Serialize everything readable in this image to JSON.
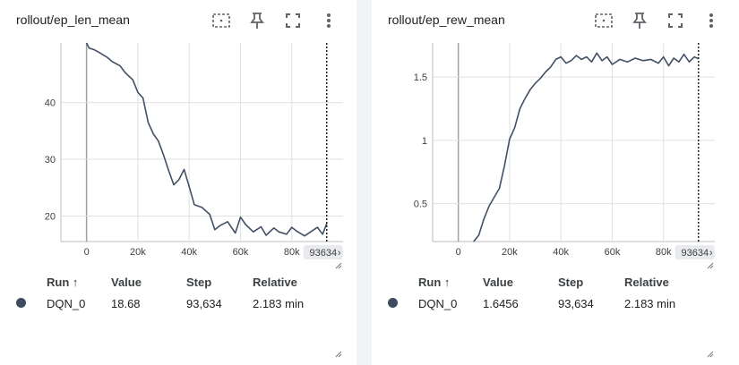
{
  "colors": {
    "series": "#425066",
    "grid": "#e0e0e0",
    "axis": "#888888"
  },
  "icons": [
    "select-region-icon",
    "pin-icon",
    "fullscreen-icon",
    "more-vert-icon"
  ],
  "cards": [
    {
      "title": "rollout/ep_len_mean",
      "step_badge": "93634",
      "table": {
        "headers": {
          "run": "Run ↑",
          "value": "Value",
          "step": "Step",
          "relative": "Relative"
        },
        "row": {
          "run": "DQN_0",
          "value": "18.68",
          "step": "93,634",
          "relative": "2.183 min"
        }
      }
    },
    {
      "title": "rollout/ep_rew_mean",
      "step_badge": "93634",
      "table": {
        "headers": {
          "run": "Run ↑",
          "value": "Value",
          "step": "Step",
          "relative": "Relative"
        },
        "row": {
          "run": "DQN_0",
          "value": "1.6456",
          "step": "93,634",
          "relative": "2.183 min"
        }
      }
    }
  ],
  "chart_data": [
    {
      "type": "line",
      "title": "rollout/ep_len_mean",
      "series": [
        {
          "name": "DQN_0",
          "x": [
            0,
            1000,
            3000,
            5000,
            8000,
            10000,
            13000,
            15000,
            18000,
            20000,
            22000,
            24000,
            26000,
            28000,
            30000,
            32000,
            34000,
            36000,
            38000,
            40000,
            42000,
            45000,
            48000,
            50000,
            52000,
            55000,
            58000,
            60000,
            62000,
            65000,
            68000,
            70000,
            73000,
            75000,
            78000,
            80000,
            82000,
            85000,
            88000,
            90000,
            92000,
            93634
          ],
          "y": [
            50.5,
            49.6,
            49.3,
            48.8,
            48.0,
            47.2,
            46.5,
            45.3,
            44.0,
            41.8,
            40.8,
            36.5,
            34.5,
            33.2,
            30.8,
            28.0,
            25.5,
            26.4,
            28.2,
            25.2,
            22.0,
            21.5,
            20.3,
            17.6,
            18.3,
            19.0,
            17.0,
            19.8,
            18.5,
            17.2,
            18.1,
            16.6,
            17.9,
            17.2,
            16.8,
            18.0,
            17.3,
            16.5,
            17.4,
            18.0,
            16.8,
            18.68
          ]
        }
      ],
      "xlim": [
        -10000,
        100000
      ],
      "ylim": [
        15.5,
        50.5
      ],
      "x_ticks": [
        0,
        20000,
        40000,
        60000,
        80000
      ],
      "x_tick_labels": [
        "0",
        "20k",
        "40k",
        "60k",
        "80k"
      ],
      "y_ticks": [
        20,
        30,
        40
      ],
      "y_tick_labels": [
        "20",
        "30",
        "40"
      ],
      "step_marker": 93634,
      "grid": true
    },
    {
      "type": "line",
      "title": "rollout/ep_rew_mean",
      "series": [
        {
          "name": "DQN_0",
          "x": [
            6000,
            8000,
            10000,
            12000,
            14000,
            16000,
            18000,
            20000,
            22000,
            24000,
            26000,
            28000,
            30000,
            32000,
            34000,
            36000,
            38000,
            40000,
            42000,
            44000,
            46000,
            48000,
            50000,
            52000,
            54000,
            56000,
            58000,
            60000,
            63000,
            66000,
            69000,
            72000,
            75000,
            78000,
            80000,
            82000,
            84000,
            86000,
            88000,
            90000,
            92000,
            93634
          ],
          "y": [
            0.2,
            0.25,
            0.38,
            0.48,
            0.55,
            0.62,
            0.8,
            1.01,
            1.1,
            1.25,
            1.33,
            1.4,
            1.45,
            1.49,
            1.54,
            1.58,
            1.64,
            1.66,
            1.61,
            1.63,
            1.67,
            1.64,
            1.66,
            1.62,
            1.69,
            1.63,
            1.66,
            1.6,
            1.64,
            1.62,
            1.65,
            1.63,
            1.64,
            1.61,
            1.66,
            1.59,
            1.65,
            1.62,
            1.68,
            1.62,
            1.66,
            1.6456
          ]
        }
      ],
      "xlim": [
        -10000,
        100000
      ],
      "ylim": [
        0.2,
        1.77
      ],
      "x_ticks": [
        0,
        20000,
        40000,
        60000,
        80000
      ],
      "x_tick_labels": [
        "0",
        "20k",
        "40k",
        "60k",
        "80k"
      ],
      "y_ticks": [
        0.5,
        1,
        1.5
      ],
      "y_tick_labels": [
        "0.5",
        "1",
        "1.5"
      ],
      "step_marker": 93634,
      "grid": true
    }
  ]
}
